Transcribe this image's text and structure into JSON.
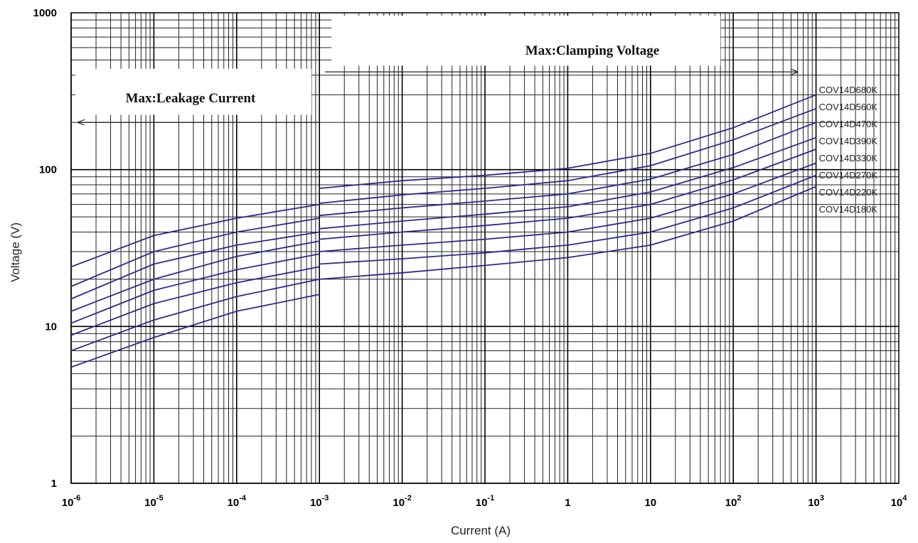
{
  "chart_data": {
    "type": "line",
    "xlabel": "Current  (A)",
    "ylabel": "Voltage   (V)",
    "xscale": "log",
    "yscale": "log",
    "xlim": [
      1e-06,
      10000
    ],
    "ylim": [
      1,
      1000
    ],
    "grid": true,
    "y_ticks": [
      {
        "value": 1,
        "label": "1"
      },
      {
        "value": 10,
        "label": "10"
      },
      {
        "value": 100,
        "label": "100"
      },
      {
        "value": 1000,
        "label": "1000"
      }
    ],
    "x_ticks": [
      {
        "value": 1e-06,
        "base": "10",
        "exp": "-6"
      },
      {
        "value": 1e-05,
        "base": "10",
        "exp": "-5"
      },
      {
        "value": 0.0001,
        "base": "10",
        "exp": "-4"
      },
      {
        "value": 0.001,
        "base": "10",
        "exp": "-3"
      },
      {
        "value": 0.01,
        "base": "10",
        "exp": "-2"
      },
      {
        "value": 0.1,
        "base": "10",
        "exp": "-1"
      },
      {
        "value": 1,
        "base": "1",
        "exp": ""
      },
      {
        "value": 10,
        "base": "10",
        "exp": ""
      },
      {
        "value": 100,
        "base": "10",
        "exp": "2"
      },
      {
        "value": 1000,
        "base": "10",
        "exp": "3"
      },
      {
        "value": 10000,
        "base": "10",
        "exp": "4"
      }
    ],
    "line_color": "#2b2b8c",
    "annotations": [
      {
        "text": "Max:Leakage Current",
        "arrow_from": 0.001,
        "arrow_to": 1e-06,
        "arrow_y": 200
      },
      {
        "text": "Max:Clamping Voltage",
        "arrow_from": 0.001,
        "arrow_to": 1000,
        "arrow_y": 420
      }
    ],
    "series": [
      {
        "name": "COV14D680K",
        "leakage": {
          "x": [
            1e-06,
            1e-05,
            0.0001,
            0.001
          ],
          "y": [
            24,
            38,
            49,
            60
          ]
        },
        "clamping": {
          "x": [
            0.001,
            0.01,
            0.1,
            1,
            10,
            100,
            1000
          ],
          "y": [
            76,
            85,
            92,
            102,
            127,
            185,
            300
          ]
        }
      },
      {
        "name": "COV14D560K",
        "leakage": {
          "x": [
            1e-06,
            1e-05,
            0.0001,
            0.001
          ],
          "y": [
            18,
            30,
            40,
            49
          ]
        },
        "clamping": {
          "x": [
            0.001,
            0.01,
            0.1,
            1,
            10,
            100,
            1000
          ],
          "y": [
            61,
            69,
            76,
            85,
            106,
            155,
            245
          ]
        }
      },
      {
        "name": "COV14D470K",
        "leakage": {
          "x": [
            1e-06,
            1e-05,
            0.0001,
            0.001
          ],
          "y": [
            15,
            25,
            33,
            40
          ]
        },
        "clamping": {
          "x": [
            0.001,
            0.01,
            0.1,
            1,
            10,
            100,
            1000
          ],
          "y": [
            51,
            57,
            63,
            70,
            87,
            125,
            200
          ]
        }
      },
      {
        "name": "COV14D390K",
        "leakage": {
          "x": [
            1e-06,
            1e-05,
            0.0001,
            0.001
          ],
          "y": [
            12.5,
            20,
            28,
            35
          ]
        },
        "clamping": {
          "x": [
            0.001,
            0.01,
            0.1,
            1,
            10,
            100,
            1000
          ],
          "y": [
            42,
            47,
            52,
            58,
            72,
            103,
            160
          ]
        }
      },
      {
        "name": "COV14D330K",
        "leakage": {
          "x": [
            1e-06,
            1e-05,
            0.0001,
            0.001
          ],
          "y": [
            10.5,
            17,
            23,
            29
          ]
        },
        "clamping": {
          "x": [
            0.001,
            0.01,
            0.1,
            1,
            10,
            100,
            1000
          ],
          "y": [
            36,
            40,
            44,
            49,
            60,
            86,
            135
          ]
        }
      },
      {
        "name": "COV14D270K",
        "leakage": {
          "x": [
            1e-06,
            1e-05,
            0.0001,
            0.001
          ],
          "y": [
            8.8,
            14,
            19,
            24
          ]
        },
        "clamping": {
          "x": [
            0.001,
            0.01,
            0.1,
            1,
            10,
            100,
            1000
          ],
          "y": [
            30,
            33,
            36,
            40,
            49,
            70,
            110
          ]
        }
      },
      {
        "name": "COV14D220K",
        "leakage": {
          "x": [
            1e-06,
            1e-05,
            0.0001,
            0.001
          ],
          "y": [
            7,
            11,
            15.5,
            20
          ]
        },
        "clamping": {
          "x": [
            0.001,
            0.01,
            0.1,
            1,
            10,
            100,
            1000
          ],
          "y": [
            25,
            27,
            29.5,
            33,
            40,
            57,
            92
          ]
        }
      },
      {
        "name": "COV14D180K",
        "leakage": {
          "x": [
            1e-06,
            1e-05,
            0.0001,
            0.001
          ],
          "y": [
            5.5,
            8.5,
            12.5,
            16
          ]
        },
        "clamping": {
          "x": [
            0.001,
            0.01,
            0.1,
            1,
            10,
            100,
            1000
          ],
          "y": [
            20,
            22,
            24.5,
            27.5,
            33,
            47,
            78
          ]
        }
      }
    ]
  }
}
